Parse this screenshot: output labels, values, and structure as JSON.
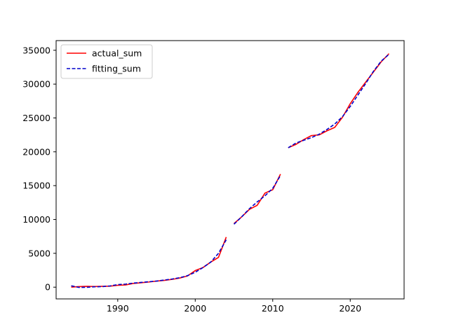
{
  "chart_data": {
    "type": "line",
    "title": "",
    "xlabel": "",
    "ylabel": "",
    "xlim": [
      1982.05,
      2026.95
    ],
    "ylim": [
      -1734,
      36427
    ],
    "xticks": [
      1990,
      2000,
      2010,
      2020
    ],
    "yticks": [
      0,
      5000,
      10000,
      15000,
      20000,
      25000,
      30000,
      35000
    ],
    "grid": false,
    "legend_position": "upper left",
    "series": [
      {
        "name": "actual_sum",
        "color": "#ff0000",
        "style": "solid",
        "segments": [
          [
            [
              1984,
              0
            ],
            [
              1985,
              80
            ],
            [
              1986,
              120
            ],
            [
              1987,
              100
            ],
            [
              1988,
              120
            ],
            [
              1989,
              150
            ],
            [
              1990,
              280
            ],
            [
              1991,
              330
            ],
            [
              1992,
              550
            ],
            [
              1993,
              650
            ],
            [
              1994,
              760
            ],
            [
              1995,
              900
            ],
            [
              1996,
              1000
            ],
            [
              1997,
              1150
            ],
            [
              1998,
              1350
            ],
            [
              1999,
              1650
            ],
            [
              2000,
              2450
            ],
            [
              2001,
              2900
            ],
            [
              2002,
              3700
            ],
            [
              2003,
              4400
            ],
            [
              2004,
              7400
            ]
          ],
          [
            [
              2005,
              9400
            ],
            [
              2006,
              10400
            ],
            [
              2007,
              11500
            ],
            [
              2008,
              12100
            ],
            [
              2009,
              13900
            ],
            [
              2010,
              14400
            ],
            [
              2011,
              16700
            ]
          ],
          [
            [
              2012,
              20600
            ],
            [
              2013,
              21100
            ],
            [
              2014,
              21800
            ],
            [
              2015,
              22400
            ],
            [
              2016,
              22500
            ],
            [
              2017,
              23100
            ],
            [
              2018,
              23600
            ],
            [
              2019,
              25100
            ],
            [
              2020,
              27100
            ],
            [
              2021,
              28800
            ],
            [
              2022,
              30300
            ],
            [
              2023,
              31800
            ],
            [
              2024,
              33300
            ],
            [
              2025,
              34500
            ]
          ]
        ]
      },
      {
        "name": "fitting_sum",
        "color": "#0000cc",
        "style": "dashed",
        "segments": [
          [
            [
              1984,
              200
            ],
            [
              1985,
              -40
            ],
            [
              1986,
              -20
            ],
            [
              1987,
              50
            ],
            [
              1988,
              80
            ],
            [
              1989,
              180
            ],
            [
              1990,
              380
            ],
            [
              1991,
              450
            ],
            [
              1992,
              600
            ],
            [
              1993,
              700
            ],
            [
              1994,
              800
            ],
            [
              1995,
              900
            ],
            [
              1996,
              1050
            ],
            [
              1997,
              1200
            ],
            [
              1998,
              1400
            ],
            [
              1999,
              1700
            ],
            [
              2000,
              2200
            ],
            [
              2001,
              2900
            ],
            [
              2002,
              3700
            ],
            [
              2003,
              5000
            ],
            [
              2004,
              7000
            ]
          ],
          [
            [
              2005,
              9300
            ],
            [
              2006,
              10400
            ],
            [
              2007,
              11600
            ],
            [
              2008,
              12600
            ],
            [
              2009,
              13500
            ],
            [
              2010,
              14600
            ],
            [
              2011,
              16500
            ]
          ],
          [
            [
              2012,
              20600
            ],
            [
              2013,
              21300
            ],
            [
              2014,
              21700
            ],
            [
              2015,
              22100
            ],
            [
              2016,
              22600
            ],
            [
              2017,
              23300
            ],
            [
              2018,
              24100
            ],
            [
              2019,
              25200
            ],
            [
              2020,
              26700
            ],
            [
              2021,
              28400
            ],
            [
              2022,
              30100
            ],
            [
              2023,
              31900
            ],
            [
              2024,
              33400
            ],
            [
              2025,
              34400
            ]
          ]
        ]
      }
    ]
  }
}
